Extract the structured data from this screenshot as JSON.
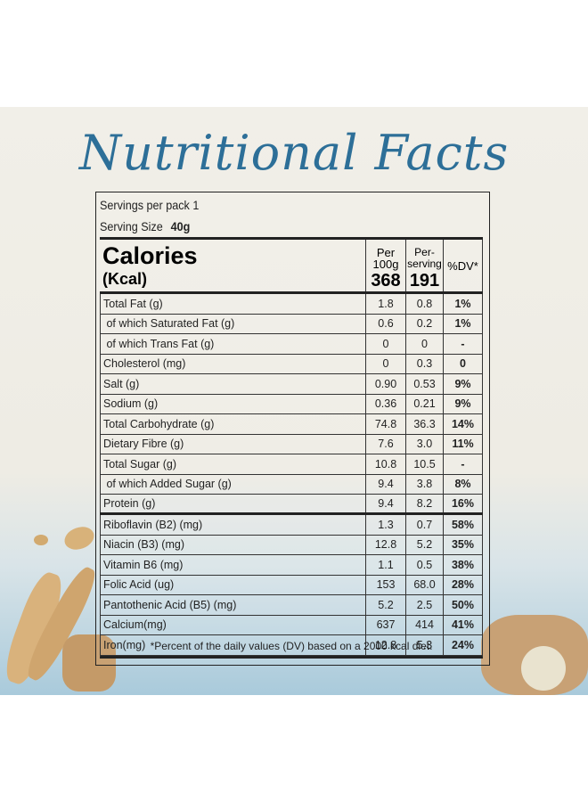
{
  "header": {
    "title": "Nutritional Facts"
  },
  "serving": {
    "per_pack": "Servings per pack 1",
    "size_label": "Serving Size",
    "size_value": "40g"
  },
  "table": {
    "head": {
      "calories": "Calories",
      "unit": "(Kcal)",
      "per100_label_1": "Per",
      "per100_label_2": "100g",
      "per100_value": "368",
      "serving_label_1": "Per-",
      "serving_label_2": "serving",
      "serving_value": "191",
      "dv_label": "%DV*"
    },
    "groups": [
      {
        "rows": [
          [
            "Total Fat (g)",
            "1.8",
            "0.8",
            "1%"
          ],
          [
            " of which Saturated Fat (g)",
            "0.6",
            "0.2",
            "1%"
          ],
          [
            " of which Trans Fat (g)",
            "0",
            "0",
            "-"
          ],
          [
            "Cholesterol (mg)",
            "0",
            "0.3",
            "0"
          ],
          [
            "Salt (g)",
            "0.90",
            "0.53",
            "9%"
          ],
          [
            "Sodium (g)",
            "0.36",
            "0.21",
            "9%"
          ],
          [
            "Total Carbohydrate (g)",
            "74.8",
            "36.3",
            "14%"
          ],
          [
            "Dietary Fibre (g)",
            "7.6",
            "3.0",
            "11%"
          ],
          [
            "Total Sugar (g)",
            "10.8",
            "10.5",
            "-"
          ],
          [
            " of which Added Sugar (g)",
            "9.4",
            "3.8",
            "8%"
          ],
          [
            "Protein (g)",
            "9.4",
            "8.2",
            "16%"
          ]
        ]
      },
      {
        "rows": [
          [
            "Riboflavin (B2) (mg)",
            "1.3",
            "0.7",
            "58%"
          ],
          [
            "Niacin (B3) (mg)",
            "12.8",
            "5.2",
            "35%"
          ],
          [
            "Vitamin B6 (mg)",
            "1.1",
            "0.5",
            "38%"
          ],
          [
            "Folic Acid (ug)",
            "153",
            "68.0",
            "28%"
          ],
          [
            "Pantothenic Acid (B5) (mg)",
            "5.2",
            "2.5",
            "50%"
          ],
          [
            "Calcium(mg)",
            "637",
            "414",
            "41%"
          ],
          [
            "Iron(mg)",
            "12.8",
            "5.3",
            "24%"
          ]
        ]
      }
    ],
    "footnote": "*Percent of the daily values (DV) based on a 2000 kcal diet."
  }
}
